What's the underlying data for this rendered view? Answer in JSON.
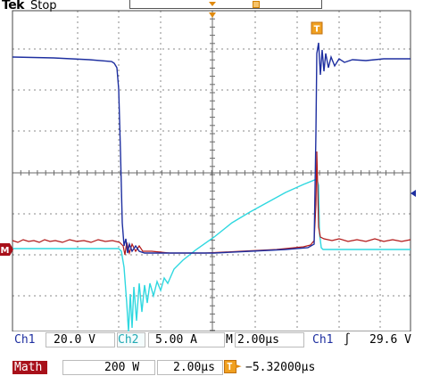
{
  "header": {
    "brand": "Tek",
    "status": "Stop"
  },
  "markers": {
    "trigger_position": "T",
    "ground_ref": "M"
  },
  "readouts": {
    "ch1_label": "Ch1",
    "ch1_scale": "20.0 V",
    "ch2_label": "Ch2",
    "ch2_scale": "5.00 A",
    "timebase_label": "M",
    "timebase": "2.00µs",
    "trig_source": "Ch1",
    "trig_slope": "∫",
    "trig_level": "29.6 V",
    "math_label": "Math",
    "math_scale": "200 W",
    "math_time": "2.00µs",
    "trig_icon": "T",
    "delay": "−5.32000µs"
  },
  "colors": {
    "ch1": "#1e2fa0",
    "ch2": "#2fd8e0",
    "math": "#b21818",
    "grid": "#888888",
    "math_bg": "#a8101a"
  }
}
